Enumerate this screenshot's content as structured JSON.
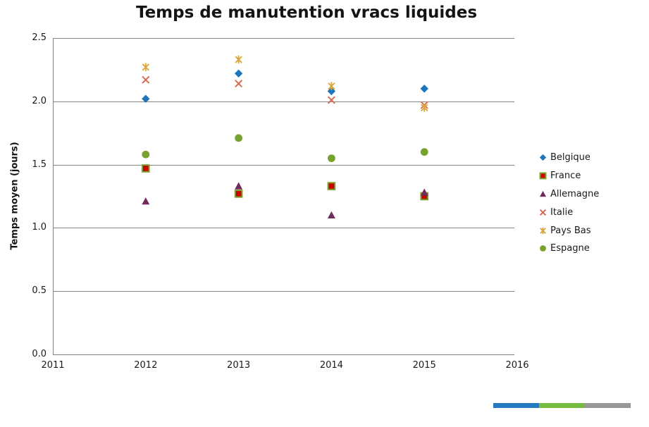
{
  "chart_data": {
    "type": "scatter",
    "title": "Temps de manutention vracs liquides",
    "xlabel": "",
    "ylabel": "Temps moyen (jours)",
    "x": [
      2012,
      2013,
      2014,
      2015
    ],
    "xlim": [
      2011,
      2016
    ],
    "ylim": [
      0,
      2.5
    ],
    "xticks": [
      "2011",
      "2012",
      "2013",
      "2014",
      "2015",
      "2016"
    ],
    "yticks": [
      "0.0",
      "0.5",
      "1.0",
      "1.5",
      "2.0",
      "2.5"
    ],
    "grid": "horizontal-only",
    "legend_position": "right",
    "series": [
      {
        "name": "Belgique",
        "marker": "diamond",
        "color": "#1D76BB",
        "values": [
          2.02,
          2.22,
          2.08,
          2.1
        ]
      },
      {
        "name": "France",
        "marker": "square",
        "color": "#CC0000",
        "border_color": "#7AA22A",
        "values": [
          1.47,
          1.27,
          1.33,
          1.25
        ]
      },
      {
        "name": "Allemagne",
        "marker": "triangle",
        "color": "#722B5C",
        "values": [
          1.21,
          1.33,
          1.1,
          1.28
        ]
      },
      {
        "name": "Italie",
        "marker": "x",
        "color": "#D8694B",
        "values": [
          2.17,
          2.14,
          2.01,
          1.97
        ]
      },
      {
        "name": "Pays Bas",
        "marker": "star",
        "color": "#D9A940",
        "values": [
          2.27,
          2.33,
          2.12,
          1.95
        ]
      },
      {
        "name": "Espagne",
        "marker": "circle",
        "color": "#76A32E",
        "values": [
          1.58,
          1.71,
          1.55,
          1.6
        ]
      }
    ],
    "axis_color": "#808080",
    "grid_color": "#858585",
    "text_color": "#1a1a1a"
  },
  "footer_bar": {
    "segments": [
      {
        "name": "blue",
        "color": "#2478BE"
      },
      {
        "name": "green",
        "color": "#76BC40"
      },
      {
        "name": "gray",
        "color": "#95989B"
      }
    ]
  }
}
